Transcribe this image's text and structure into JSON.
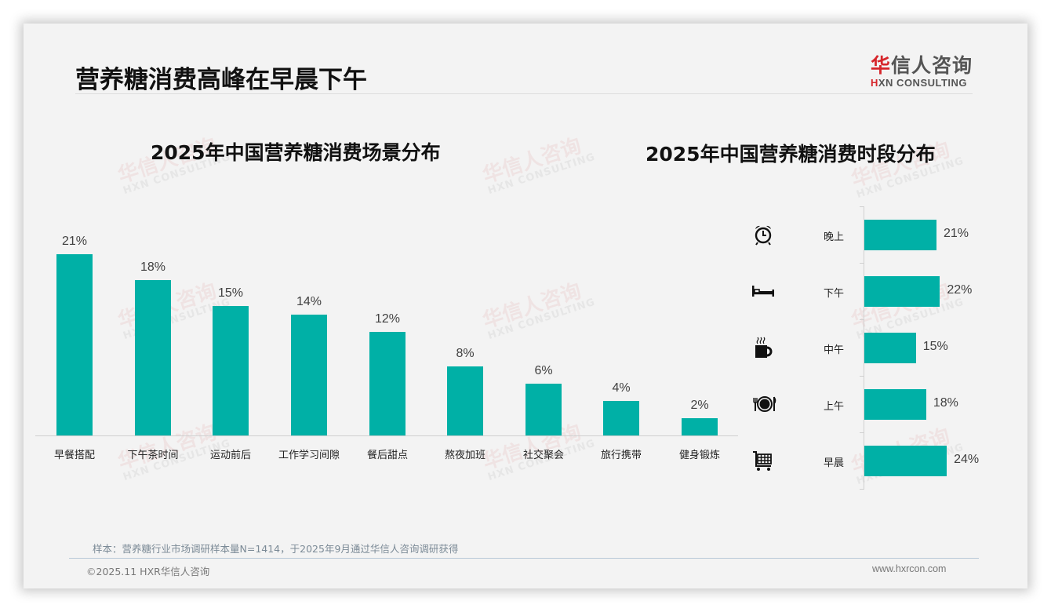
{
  "page": {
    "title": "营养糖消费高峰在早晨下午"
  },
  "logo": {
    "cn_accent": "华",
    "cn_rest": "信人咨询",
    "en_accent": "H",
    "en_rest": "XN CONSULTING"
  },
  "watermark": {
    "cn": "华信人咨询",
    "en": "HXN CONSULTING"
  },
  "colors": {
    "bar": "#00b0a6",
    "brand_red": "#d6262b",
    "background": "#f3f3f3"
  },
  "chart_data": [
    {
      "type": "bar",
      "title": "2025年中国营养糖消费场景分布",
      "categories": [
        "早餐搭配",
        "下午茶时间",
        "运动前后",
        "工作学习间隙",
        "餐后甜点",
        "熬夜加班",
        "社交聚会",
        "旅行携带",
        "健身锻炼"
      ],
      "values": [
        21,
        18,
        15,
        14,
        12,
        8,
        6,
        4,
        2
      ],
      "value_labels": [
        "21%",
        "18%",
        "15%",
        "14%",
        "12%",
        "8%",
        "6%",
        "4%",
        "2%"
      ],
      "unit": "%",
      "xlabel": "",
      "ylabel": "",
      "grid": false,
      "legend": "none"
    },
    {
      "type": "bar",
      "orientation": "horizontal",
      "title": "2025年中国营养糖消费时段分布",
      "categories": [
        "晚上",
        "下午",
        "中午",
        "上午",
        "早晨"
      ],
      "values": [
        21,
        22,
        15,
        18,
        24
      ],
      "value_labels": [
        "21%",
        "22%",
        "15%",
        "18%",
        "24%"
      ],
      "icons": [
        "alarm-clock-icon",
        "bed-icon",
        "coffee-mug-icon",
        "plate-cutlery-icon",
        "shopping-cart-icon"
      ],
      "unit": "%",
      "xlabel": "",
      "ylabel": "",
      "grid": false,
      "legend": "none"
    }
  ],
  "footer": {
    "note": "样本：营养糖行业市场调研样本量N=1414，于2025年9月通过华信人咨询调研获得",
    "copyright": "©2025.11 HXR华信人咨询",
    "website": "www.hxrcon.com"
  }
}
